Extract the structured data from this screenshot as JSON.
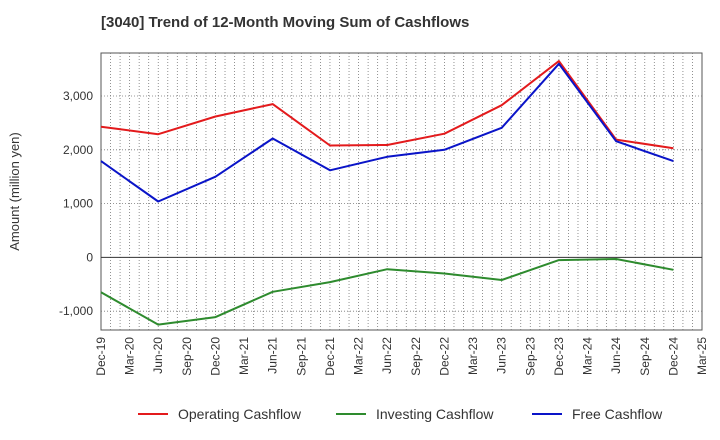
{
  "chart_data": {
    "type": "line",
    "title": "[3040]  Trend of 12-Month Moving Sum of Cashflows",
    "xlabel": "",
    "ylabel": "Amount (million yen)",
    "ylim": [
      -1350,
      3800
    ],
    "yticks": [
      -1000,
      0,
      1000,
      2000,
      3000
    ],
    "ytick_labels": [
      "-1,000",
      "0",
      "1,000",
      "2,000",
      "3,000"
    ],
    "x_tick_labels": [
      "Dec-19",
      "Mar-20",
      "Jun-20",
      "Sep-20",
      "Dec-20",
      "Mar-21",
      "Jun-21",
      "Sep-21",
      "Dec-21",
      "Mar-22",
      "Jun-22",
      "Sep-22",
      "Dec-22",
      "Mar-23",
      "Jun-23",
      "Sep-23",
      "Dec-23",
      "Mar-24",
      "Jun-24",
      "Sep-24",
      "Dec-24",
      "Mar-25"
    ],
    "x": [
      "Dec-19",
      "Jun-20",
      "Dec-20",
      "Jun-21",
      "Dec-21",
      "Jun-22",
      "Dec-22",
      "Jun-23",
      "Dec-23",
      "Jun-24",
      "Dec-24"
    ],
    "grid": true,
    "legend_position": "bottom",
    "series": [
      {
        "name": "Operating Cashflow",
        "color": "#e31a1c",
        "values": [
          2430,
          2290,
          2620,
          2850,
          2080,
          2090,
          2300,
          2830,
          3650,
          2190,
          2030
        ]
      },
      {
        "name": "Investing Cashflow",
        "color": "#2e8b2e",
        "values": [
          -650,
          -1250,
          -1110,
          -640,
          -460,
          -220,
          -300,
          -420,
          -50,
          -30,
          -230
        ]
      },
      {
        "name": "Free Cashflow",
        "color": "#0a14c8",
        "values": [
          1790,
          1040,
          1500,
          2210,
          1620,
          1870,
          2000,
          2410,
          3600,
          2160,
          1790
        ]
      }
    ]
  }
}
